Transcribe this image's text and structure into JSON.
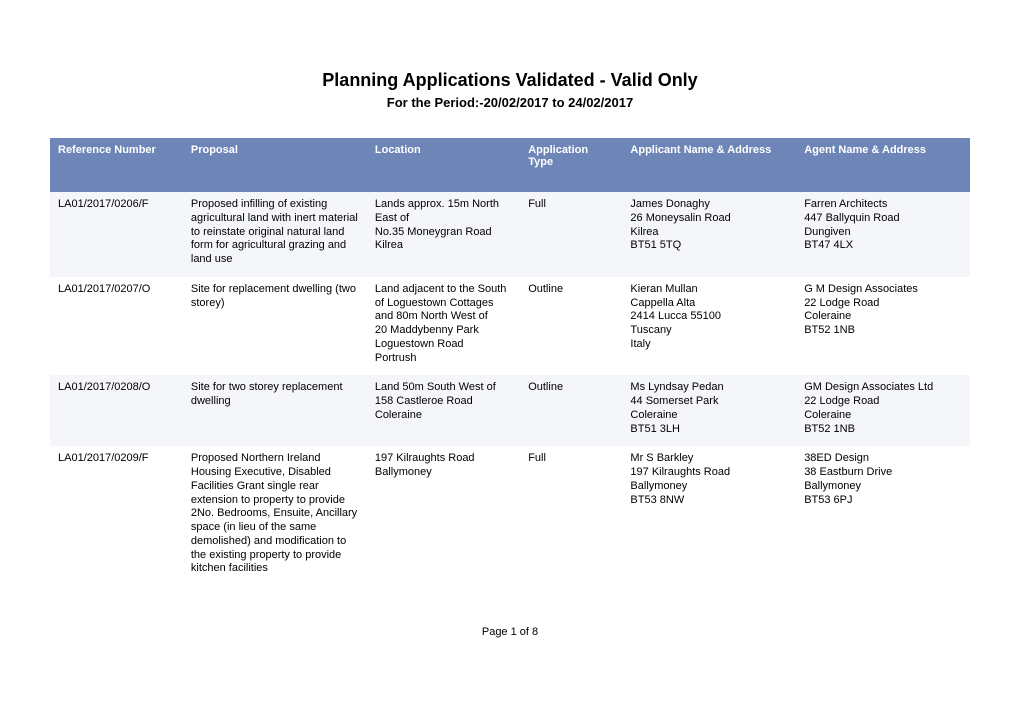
{
  "title": "Planning Applications Validated - Valid Only",
  "subtitle": "For the Period:-20/02/2017 to 24/02/2017",
  "footer": "Page 1 of 8",
  "header_bg": "#6e85b7",
  "header_fg": "#ffffff",
  "row_odd_bg": "#f4f6fa",
  "row_even_bg": "#ffffff",
  "columns": [
    "Reference Number",
    "Proposal",
    "Location",
    "Application Type",
    "Applicant Name & Address",
    "Agent Name & Address"
  ],
  "rows": [
    {
      "ref": "LA01/2017/0206/F",
      "proposal": "Proposed infilling of existing agricultural land with inert material to reinstate original natural land form for agricultural grazing and land use",
      "location": "Lands approx. 15m North East of\nNo.35 Moneygran Road\nKilrea",
      "type": "Full",
      "applicant": "James Donaghy\n26 Moneysalin Road\nKilrea\nBT51 5TQ",
      "agent": "Farren Architects\n447 Ballyquin Road\nDungiven\nBT47 4LX"
    },
    {
      "ref": "LA01/2017/0207/O",
      "proposal": "Site for replacement dwelling (two storey)",
      "location": "Land adjacent to the South of Loguestown Cottages and 80m North West of\n20 Maddybenny Park\nLoguestown Road\nPortrush",
      "type": "Outline",
      "applicant": "Kieran Mullan\nCappella Alta\n2414 Lucca 55100\nTuscany\nItaly",
      "agent": "G M Design Associates\n22 Lodge Road\nColeraine\nBT52 1NB"
    },
    {
      "ref": "LA01/2017/0208/O",
      "proposal": "Site for two storey replacement dwelling",
      "location": "Land 50m South West of 158 Castleroe Road\nColeraine",
      "type": "Outline",
      "applicant": "Ms Lyndsay Pedan\n44 Somerset Park\nColeraine\nBT51 3LH",
      "agent": "GM Design Associates Ltd\n22 Lodge Road\nColeraine\nBT52 1NB"
    },
    {
      "ref": "LA01/2017/0209/F",
      "proposal": "Proposed Northern Ireland Housing Executive, Disabled Facilities Grant single rear extension to property to provide 2No. Bedrooms, Ensuite, Ancillary space (in lieu of the same demolished) and modification to the existing property to provide kitchen facilities",
      "location": "197 Kilraughts Road\nBallymoney",
      "type": "Full",
      "applicant": "Mr S Barkley\n197 Kilraughts Road\nBallymoney\nBT53 8NW",
      "agent": "38ED Design\n38 Eastburn Drive\nBallymoney\nBT53 6PJ"
    }
  ]
}
